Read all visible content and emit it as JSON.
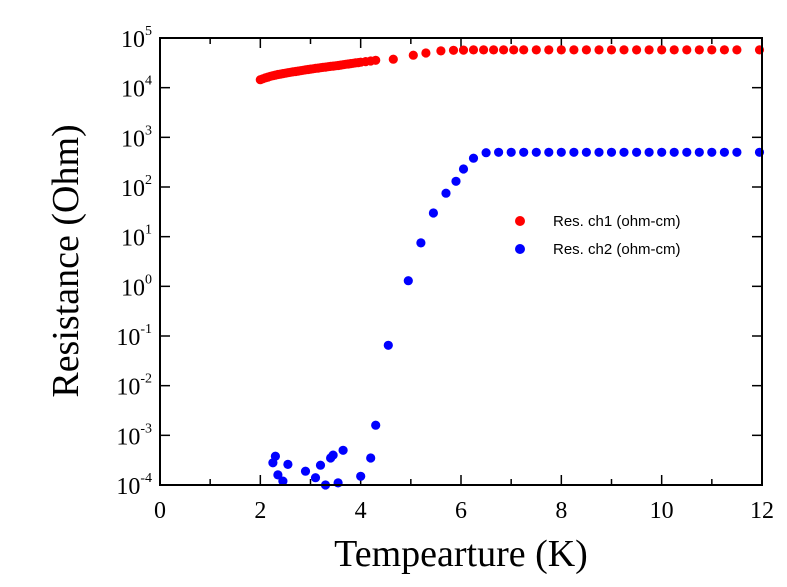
{
  "chart_data": {
    "type": "scatter",
    "xlabel": "Tempearture (K)",
    "ylabel": "Resistance (Ohm)",
    "xlim": [
      0,
      12
    ],
    "ylim": [
      0.0001,
      100000
    ],
    "yscale": "log",
    "x_ticks": [
      0,
      2,
      4,
      6,
      8,
      10,
      12
    ],
    "x_tick_labels": [
      "0",
      "2",
      "4",
      "6",
      "8",
      "10",
      "12"
    ],
    "y_tick_exponents": [
      "-4",
      "-3",
      "-2",
      "-1",
      "0",
      "1",
      "2",
      "3",
      "4",
      "5"
    ],
    "y_tick_base": "10",
    "grid": false,
    "legend_position": "center-right",
    "series": [
      {
        "name": "Res. ch1 (ohm-cm)",
        "color": "#ff0000",
        "x": [
          2.0,
          2.05,
          2.1,
          2.15,
          2.2,
          2.25,
          2.3,
          2.35,
          2.4,
          2.45,
          2.5,
          2.55,
          2.6,
          2.65,
          2.7,
          2.75,
          2.8,
          2.85,
          2.9,
          2.95,
          3.0,
          3.05,
          3.1,
          3.15,
          3.2,
          3.25,
          3.3,
          3.35,
          3.4,
          3.45,
          3.5,
          3.55,
          3.6,
          3.65,
          3.7,
          3.75,
          3.8,
          3.85,
          3.9,
          3.95,
          4.0,
          4.1,
          4.2,
          4.3,
          4.65,
          5.05,
          5.3,
          5.6,
          5.85,
          6.05,
          6.25,
          6.45,
          6.65,
          6.85,
          7.05,
          7.25,
          7.5,
          7.75,
          8.0,
          8.25,
          8.5,
          8.75,
          9.0,
          9.25,
          9.5,
          9.75,
          10.0,
          10.25,
          10.5,
          10.75,
          11.0,
          11.25,
          11.5,
          11.95
        ],
        "y": [
          14500,
          15100,
          15700,
          16300,
          16900,
          17400,
          17900,
          18400,
          18800,
          19200,
          19600,
          20000,
          20400,
          20800,
          21200,
          21600,
          22000,
          22400,
          22800,
          23200,
          23600,
          24000,
          24400,
          24800,
          25200,
          25600,
          26000,
          26400,
          26800,
          27200,
          27600,
          28000,
          28500,
          29000,
          29500,
          30000,
          30500,
          31000,
          31500,
          32000,
          32500,
          33500,
          34500,
          35500,
          37500,
          45000,
          50000,
          55000,
          56500,
          57000,
          57500,
          57500,
          57500,
          57500,
          57500,
          57500,
          57500,
          57500,
          57500,
          57500,
          57500,
          57500,
          57500,
          57500,
          57500,
          57500,
          57500,
          57500,
          57500,
          57500,
          57500,
          57500,
          57500,
          57500
        ]
      },
      {
        "name": "Res. ch2 (ohm-cm)",
        "color": "#0000ff",
        "x": [
          2.25,
          2.3,
          2.35,
          2.45,
          2.55,
          2.9,
          3.1,
          3.2,
          3.3,
          3.4,
          3.45,
          3.55,
          3.65,
          4.0,
          4.2,
          4.3,
          4.55,
          4.95,
          5.2,
          5.45,
          5.7,
          5.9,
          6.05,
          6.25,
          6.5,
          6.75,
          7.0,
          7.25,
          7.5,
          7.75,
          8.0,
          8.25,
          8.5,
          8.75,
          9.0,
          9.25,
          9.5,
          9.75,
          10.0,
          10.25,
          10.5,
          10.75,
          11.0,
          11.25,
          11.5,
          11.95
        ],
        "y": [
          0.00028,
          0.00038,
          0.00016,
          0.00012,
          0.00026,
          0.00019,
          0.00014,
          0.00025,
          0.0001,
          0.00035,
          0.0004,
          0.00011,
          0.0005,
          0.00015,
          0.00035,
          0.0016,
          0.065,
          1.3,
          7.5,
          30,
          75,
          130,
          230,
          380,
          490,
          500,
          500,
          500,
          500,
          500,
          500,
          500,
          500,
          500,
          500,
          500,
          500,
          500,
          500,
          500,
          500,
          500,
          500,
          500,
          500,
          500
        ]
      }
    ]
  }
}
